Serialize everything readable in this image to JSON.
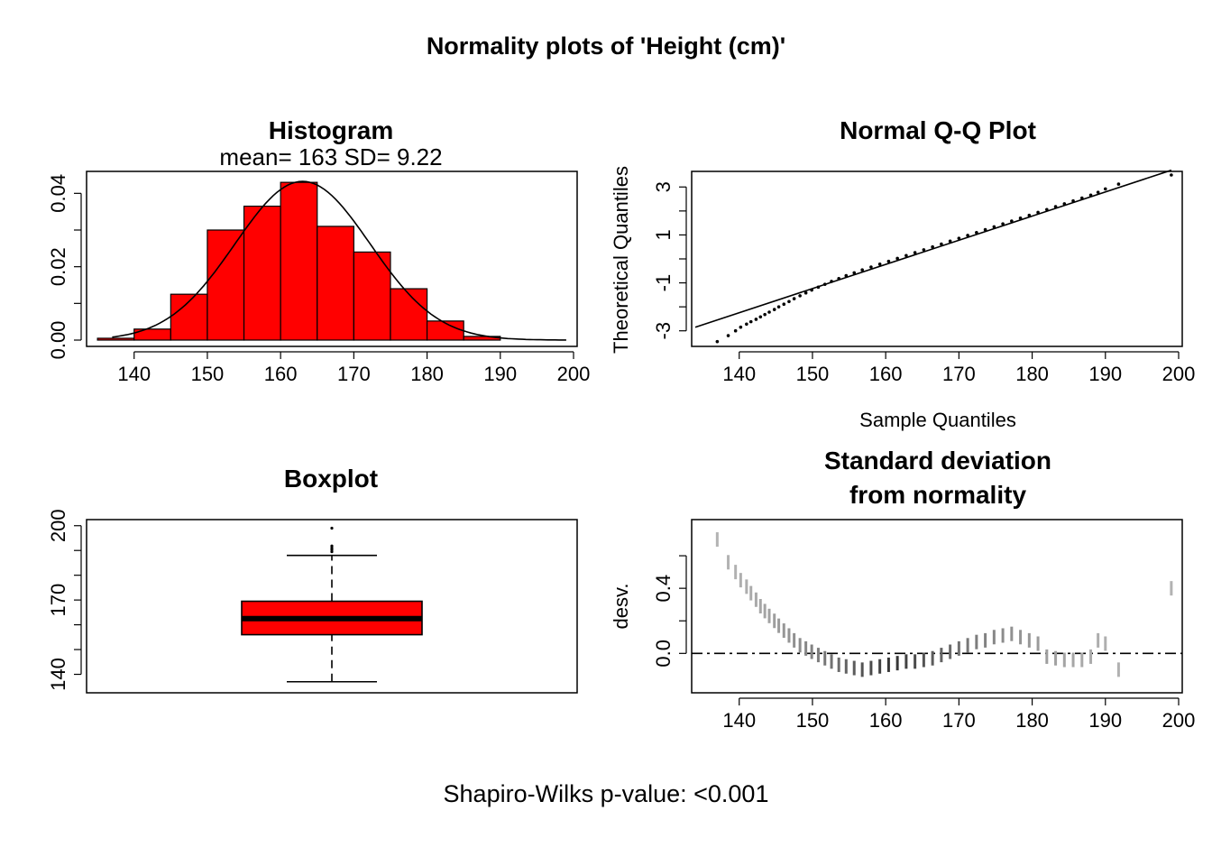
{
  "page": {
    "title": "Normality plots of 'Height (cm)'",
    "footer": "Shapiro-Wilks p-value: <0.001"
  },
  "chart_data": [
    {
      "type": "bar",
      "title": "Histogram",
      "subtitle": "mean= 163  SD= 9.22",
      "xlabel": "",
      "ylabel": "",
      "bin_edges": [
        135,
        140,
        145,
        150,
        155,
        160,
        165,
        170,
        175,
        180,
        185,
        190
      ],
      "values": [
        0.0005,
        0.003,
        0.0125,
        0.03,
        0.0365,
        0.043,
        0.031,
        0.024,
        0.014,
        0.0052,
        0.001
      ],
      "bar_color": "#ff0000",
      "normal_curve": {
        "mean": 163,
        "sd": 9.22,
        "x_range": [
          137,
          199
        ]
      },
      "xlim": [
        134,
        200
      ],
      "ylim": [
        0,
        0.045
      ],
      "xticks": [
        140,
        150,
        160,
        170,
        180,
        190,
        200
      ],
      "yticks": [
        0.0,
        0.02,
        0.04
      ],
      "ytick_labels": [
        "0.00",
        "0.02",
        "0.04"
      ],
      "grid": false
    },
    {
      "type": "scatter",
      "title": "Normal Q-Q Plot",
      "xlabel": "Sample Quantiles",
      "ylabel": "Theoretical Quantiles",
      "xlim": [
        134,
        200
      ],
      "ylim": [
        -3.5,
        3.5
      ],
      "xticks": [
        140,
        150,
        160,
        170,
        180,
        190,
        200
      ],
      "yticks": [
        -3,
        -1,
        1,
        3
      ],
      "ytick_labels": [
        "-3",
        "-1",
        "1",
        "3"
      ],
      "reference_line": {
        "x1": 134,
        "y1": -2.85,
        "x2": 199,
        "y2": 3.7
      },
      "points_x": [
        137,
        138.5,
        139.5,
        140.2,
        141,
        141.6,
        142.3,
        142.9,
        143.5,
        144.1,
        144.8,
        145.4,
        146.1,
        146.8,
        147.5,
        148.3,
        149.1,
        149.9,
        150.8,
        151.7,
        152.6,
        153.6,
        154.6,
        155.7,
        156.8,
        158,
        159.2,
        160.4,
        161.6,
        162.8,
        164,
        165.2,
        166.4,
        167.6,
        168.8,
        170,
        171.2,
        172.4,
        173.6,
        174.8,
        176,
        177.2,
        178.4,
        179.6,
        180.8,
        182,
        183.2,
        184.4,
        185.6,
        186.8,
        188,
        189,
        190,
        191.8,
        199
      ],
      "points_y": [
        -3.45,
        -3.2,
        -3.0,
        -2.85,
        -2.72,
        -2.62,
        -2.52,
        -2.42,
        -2.32,
        -2.22,
        -2.11,
        -2.0,
        -1.89,
        -1.78,
        -1.66,
        -1.54,
        -1.42,
        -1.3,
        -1.18,
        -1.06,
        -0.94,
        -0.82,
        -0.7,
        -0.58,
        -0.46,
        -0.34,
        -0.22,
        -0.1,
        0.02,
        0.14,
        0.26,
        0.38,
        0.5,
        0.62,
        0.74,
        0.86,
        0.98,
        1.1,
        1.22,
        1.34,
        1.46,
        1.58,
        1.7,
        1.82,
        1.94,
        2.06,
        2.18,
        2.3,
        2.42,
        2.54,
        2.66,
        2.78,
        2.92,
        3.12,
        3.5
      ]
    },
    {
      "type": "box",
      "title": "Boxplot",
      "xlabel": "",
      "ylabel": "",
      "ylim": [
        134,
        201
      ],
      "yticks": [
        140,
        170,
        200
      ],
      "ytick_labels": [
        "140",
        "170",
        "200"
      ],
      "whisker_low": 137,
      "q1": 156,
      "median": 162.5,
      "q3": 169.5,
      "whisker_high": 188,
      "outliers": [
        189.5,
        190.3,
        191,
        191.8,
        199
      ],
      "box_color": "#ff0000"
    },
    {
      "type": "scatter",
      "title": "Standard deviation",
      "title_line2": "from normality",
      "xlabel": "",
      "ylabel": "desv.",
      "xlim": [
        134,
        200
      ],
      "ylim": [
        -0.22,
        0.8
      ],
      "xticks": [
        140,
        150,
        160,
        170,
        180,
        190,
        200
      ],
      "yticks": [
        0.0,
        0.4
      ],
      "ytick_labels": [
        "0.0",
        "0.4"
      ],
      "reference_y": 0,
      "points_x": [
        137,
        138.5,
        139.5,
        140.2,
        141,
        141.6,
        142.3,
        142.9,
        143.5,
        144.1,
        144.8,
        145.4,
        146.1,
        146.8,
        147.5,
        148.3,
        149.1,
        149.9,
        150.8,
        151.7,
        152.6,
        153.6,
        154.6,
        155.7,
        156.8,
        158,
        159.2,
        160.4,
        161.6,
        162.8,
        164,
        165.2,
        166.4,
        167.6,
        168.8,
        170,
        171.2,
        172.4,
        173.6,
        174.8,
        176,
        177.2,
        178.4,
        179.6,
        180.8,
        182,
        183.2,
        184.4,
        185.6,
        186.8,
        188,
        189,
        190,
        191.8,
        199
      ],
      "points_y": [
        0.7,
        0.56,
        0.5,
        0.45,
        0.41,
        0.37,
        0.33,
        0.29,
        0.26,
        0.23,
        0.2,
        0.17,
        0.14,
        0.11,
        0.08,
        0.05,
        0.03,
        0.01,
        -0.01,
        -0.03,
        -0.05,
        -0.07,
        -0.08,
        -0.09,
        -0.1,
        -0.09,
        -0.08,
        -0.07,
        -0.06,
        -0.05,
        -0.05,
        -0.04,
        -0.03,
        -0.01,
        0.01,
        0.03,
        0.05,
        0.07,
        0.08,
        0.1,
        0.11,
        0.12,
        0.1,
        0.08,
        0.06,
        -0.02,
        -0.03,
        -0.04,
        -0.04,
        -0.04,
        -0.02,
        0.08,
        0.06,
        -0.1,
        0.4
      ]
    }
  ]
}
